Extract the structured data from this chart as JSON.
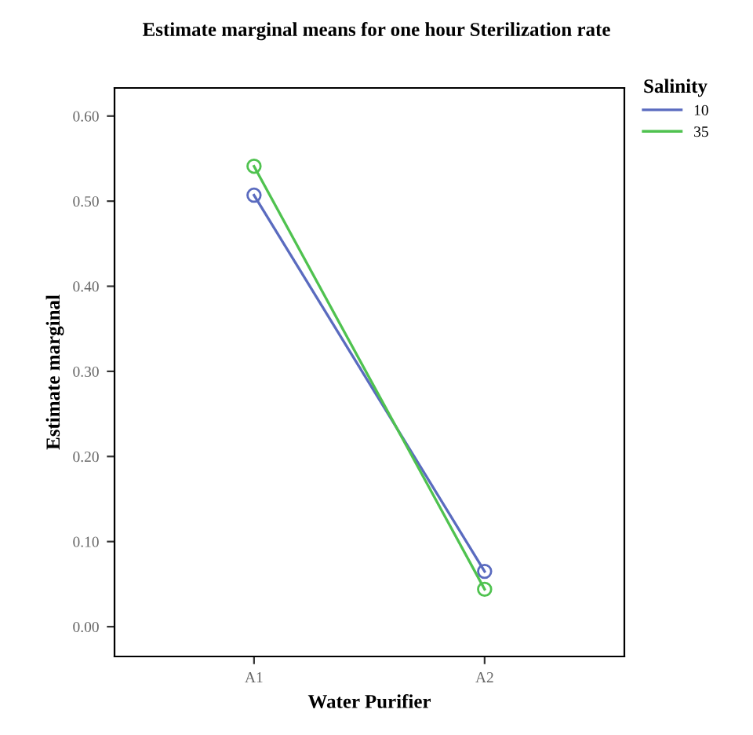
{
  "chart_data": {
    "type": "line",
    "title": "Estimate marginal means for one hour Sterilization rate",
    "xlabel": "Water Purifier",
    "ylabel": "Estimate marginal",
    "legend_title": "Salinity",
    "categories": [
      "A1",
      "A2"
    ],
    "series": [
      {
        "name": "10",
        "color": "#5a6bbf",
        "values": [
          0.507,
          0.065
        ]
      },
      {
        "name": "35",
        "color": "#4fc24f",
        "values": [
          0.541,
          0.044
        ]
      }
    ],
    "ylim": [
      -0.035,
      0.633
    ],
    "yticks": [
      {
        "value": 0,
        "label": "0.00"
      },
      {
        "value": 0.1,
        "label": "0.10"
      },
      {
        "value": 0.2,
        "label": "0.20"
      },
      {
        "value": 0.3,
        "label": "0.30"
      },
      {
        "value": 0.4,
        "label": "0.40"
      },
      {
        "value": 0.5,
        "label": "0.50"
      },
      {
        "value": 0.6,
        "label": "0.60"
      }
    ],
    "marker": "circle",
    "line_style": "solid",
    "grid": false,
    "legend": "top right"
  }
}
